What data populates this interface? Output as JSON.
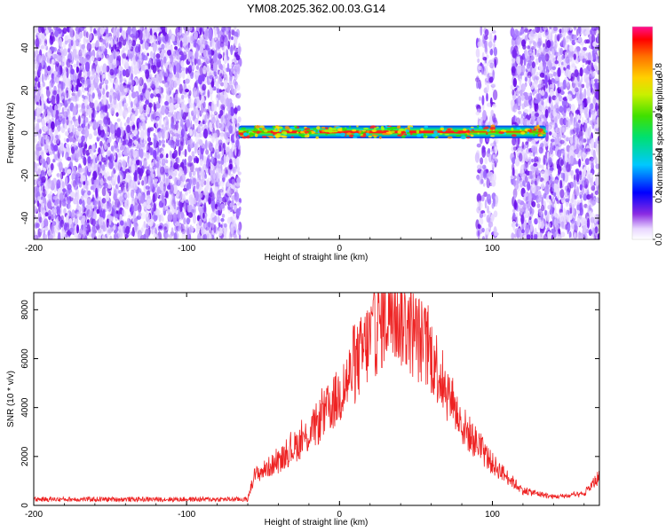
{
  "title": "YM08.2025.362.00.03.G14",
  "chart_data": [
    {
      "type": "heatmap",
      "name": "spectrogram",
      "xlabel": "Height of straight line (km)",
      "ylabel": "Frequency (Hz)",
      "xlim": [
        -200,
        170
      ],
      "ylim": [
        -50,
        50
      ],
      "xticks": [
        -200,
        -100,
        0,
        100
      ],
      "yticks": [
        -40,
        -20,
        0,
        20,
        40
      ],
      "noise_regions_km": [
        [
          -200,
          -65
        ],
        [
          90,
          103
        ],
        [
          113,
          170
        ]
      ],
      "signal_band": {
        "x_start": -66,
        "x_end": 135,
        "freq_center": 0.5,
        "half_width_hz": 3
      },
      "peak_region_km": [
        -45,
        85
      ],
      "colorbar": {
        "label": "Normalized spectral amplitude",
        "range": [
          0,
          1
        ],
        "ticks": [
          "0.0",
          "0.2",
          "0.4",
          "0.6",
          "0.8"
        ]
      }
    },
    {
      "type": "line",
      "name": "snr",
      "xlabel": "Height of straight line (km)",
      "ylabel": "SNR (10 * v/v)",
      "xlim": [
        -200,
        170
      ],
      "ylim": [
        0,
        8700
      ],
      "xticks": [
        -200,
        -100,
        0,
        100
      ],
      "yticks": [
        0,
        2000,
        4000,
        6000,
        8000
      ],
      "color": "#ee2222",
      "envelope_x": [
        -200,
        -60,
        -56,
        -40,
        -20,
        0,
        20,
        32,
        40,
        60,
        80,
        100,
        120,
        140,
        160,
        170
      ],
      "envelope_y": [
        250,
        250,
        1200,
        1800,
        2900,
        4500,
        6800,
        8000,
        7700,
        6200,
        3300,
        1700,
        600,
        350,
        450,
        1200
      ]
    }
  ]
}
